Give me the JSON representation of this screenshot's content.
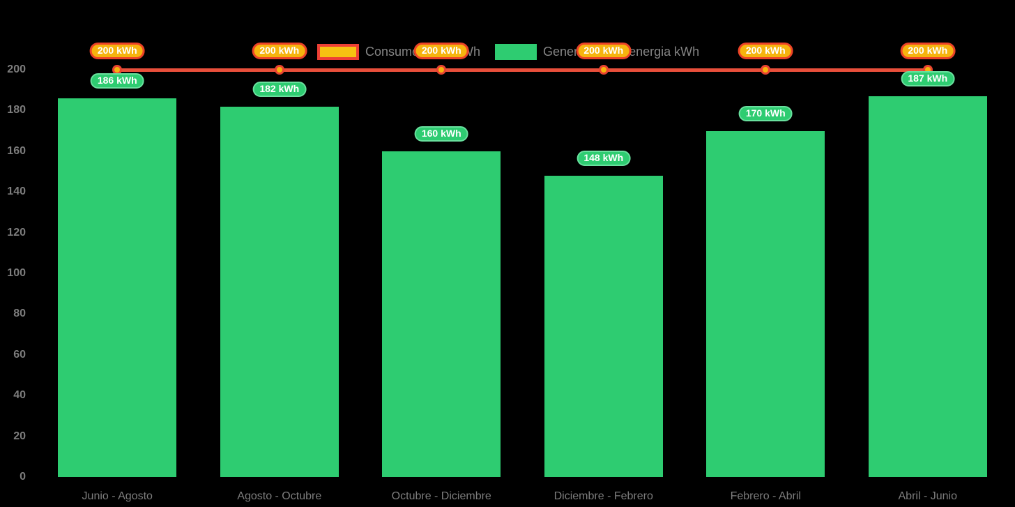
{
  "colors": {
    "background": "#000000",
    "bar_fill": "#2ecc71",
    "bar_badge_bg": "#2ecc71",
    "bar_badge_border": "#69e09e",
    "line": "#e94f3b",
    "point_fill": "#f6b40e",
    "point_border": "#e94430",
    "line_badge_bg": "#f6b40e",
    "line_badge_border": "#ec4327",
    "legend_line_swatch_fill": "#f6c211",
    "legend_line_swatch_border": "#ee4035",
    "legend_text": "#858585",
    "axis_text": "#7d7d7d"
  },
  "legend": {
    "items": [
      {
        "label": "Consumo limite kWh",
        "swatch": "line-swatch"
      },
      {
        "label": "Generacion de energia kWh",
        "swatch": "bar-swatch"
      }
    ]
  },
  "chart_data": {
    "type": "bar",
    "title": "",
    "xlabel": "",
    "ylabel": "",
    "categories": [
      "Junio - Agosto",
      "Agosto - Octubre",
      "Octubre - Diciembre",
      "Diciembre - Febrero",
      "Febrero - Abril",
      "Abril - Junio"
    ],
    "series": [
      {
        "name": "Consumo limite kWh",
        "type": "line",
        "values": [
          200,
          200,
          200,
          200,
          200,
          200
        ],
        "point_labels": [
          "200 kWh",
          "200 kWh",
          "200 kWh",
          "200 kWh",
          "200 kWh",
          "200 kWh"
        ]
      },
      {
        "name": "Generacion de energia kWh",
        "type": "bar",
        "values": [
          186,
          182,
          160,
          148,
          170,
          187
        ],
        "point_labels": [
          "186 kWh",
          "182 kWh",
          "160 kWh",
          "148 kWh",
          "170 kWh",
          "187 kWh"
        ]
      }
    ],
    "ylim": [
      0,
      200
    ],
    "yticks": [
      0,
      20,
      40,
      60,
      80,
      100,
      120,
      140,
      160,
      180,
      200
    ],
    "grid": false,
    "legend_position": "top-center"
  }
}
